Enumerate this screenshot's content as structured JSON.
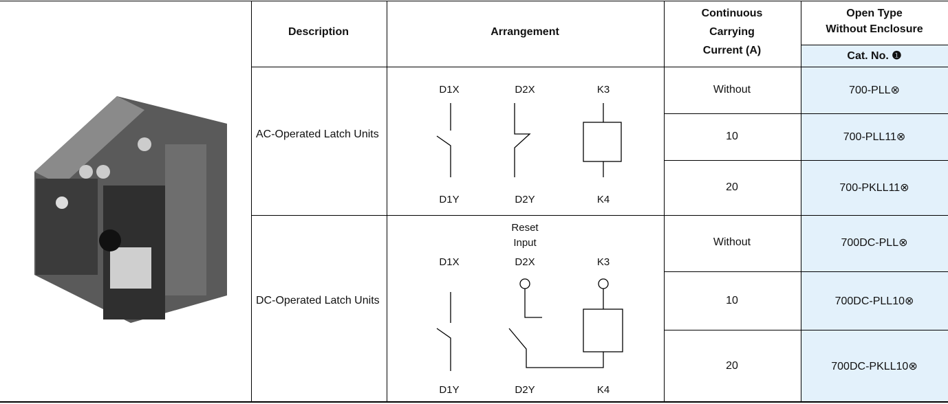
{
  "header": {
    "description": "Description",
    "arrangement": "Arrangement",
    "current": [
      "Continuous",
      "Carrying",
      "Current (A)"
    ],
    "open_type": [
      "Open Type",
      "Without Enclosure"
    ],
    "cat_no": "Cat. No. ❶"
  },
  "groups": [
    {
      "description": "AC-Operated Latch Units",
      "diagram": {
        "top": [
          "D1X",
          "D2X",
          "K3"
        ],
        "bottom": [
          "D1Y",
          "D2Y",
          "K4"
        ]
      },
      "rows": [
        {
          "current": "Without",
          "cat_no": "700-PLL⊗"
        },
        {
          "current": 10,
          "cat_no": "700-PLL11⊗"
        },
        {
          "current": 20,
          "cat_no": "700-PKLL11⊗"
        }
      ]
    },
    {
      "description": "DC-Operated Latch Units",
      "diagram": {
        "reset": [
          "Reset",
          "Input"
        ],
        "top": [
          "D1X",
          "D2X",
          "K3"
        ],
        "bottom": [
          "D1Y",
          "D2Y",
          "K4"
        ]
      },
      "rows": [
        {
          "current": "Without",
          "cat_no": "700DC-PLL⊗"
        },
        {
          "current": 10,
          "cat_no": "700DC-PLL10⊗"
        },
        {
          "current": 20,
          "cat_no": "700DC-PKLL10⊗"
        }
      ]
    }
  ]
}
